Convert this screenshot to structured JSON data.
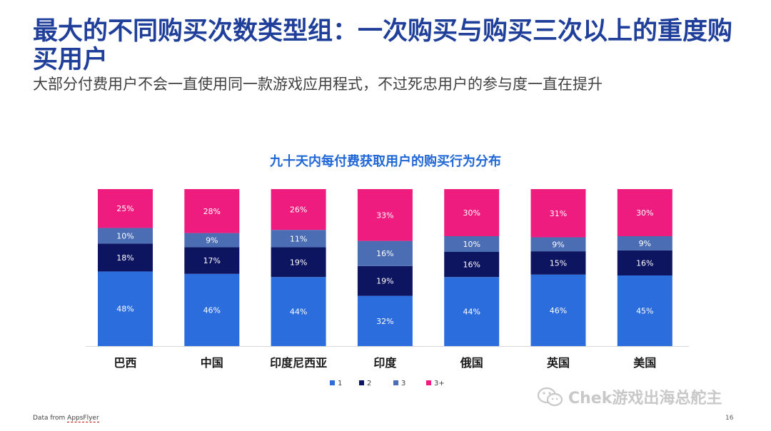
{
  "title": "最大的不同购买次数类型组：一次购买与购买三次以上的重度购买用户",
  "subtitle": "大部分付费用户不会一直使用同一款游戏应用程式，不过死忠用户的参与度一直在提升",
  "source_prefix": "Data from ",
  "source_brand": "AppsFlyer",
  "page_number": "16",
  "watermark": "Chek游戏出海总舵主",
  "chart_data": {
    "type": "bar",
    "stacked": true,
    "title": "九十天内每付费获取用户的购买行为分布",
    "categories": [
      "巴西",
      "中国",
      "印度尼西亚",
      "印度",
      "俄国",
      "英国",
      "美国"
    ],
    "series": [
      {
        "name": "1",
        "color": "#2b6ddc",
        "values": [
          48,
          46,
          44,
          32,
          44,
          46,
          45
        ],
        "labels": [
          "48%",
          "46%",
          "44%",
          "32%",
          "44%",
          "46%",
          "45%"
        ]
      },
      {
        "name": "2",
        "color": "#0d1460",
        "values": [
          18,
          17,
          19,
          19,
          16,
          15,
          16
        ],
        "labels": [
          "18%",
          "17%",
          "19%",
          "19%",
          "16%",
          "15%",
          "16%"
        ]
      },
      {
        "name": "3",
        "color": "#4a6db4",
        "values": [
          10,
          9,
          11,
          16,
          10,
          9,
          9
        ],
        "labels": [
          "10%",
          "9%",
          "11%",
          "16%",
          "10%",
          "9%",
          "9%"
        ]
      },
      {
        "name": "3+",
        "color": "#ee1c7f",
        "values": [
          25,
          28,
          26,
          33,
          30,
          31,
          30
        ],
        "labels": [
          "25%",
          "28%",
          "26%",
          "33%",
          "30%",
          "31%",
          "30%"
        ]
      }
    ],
    "legend_position": "bottom",
    "grid": false
  }
}
